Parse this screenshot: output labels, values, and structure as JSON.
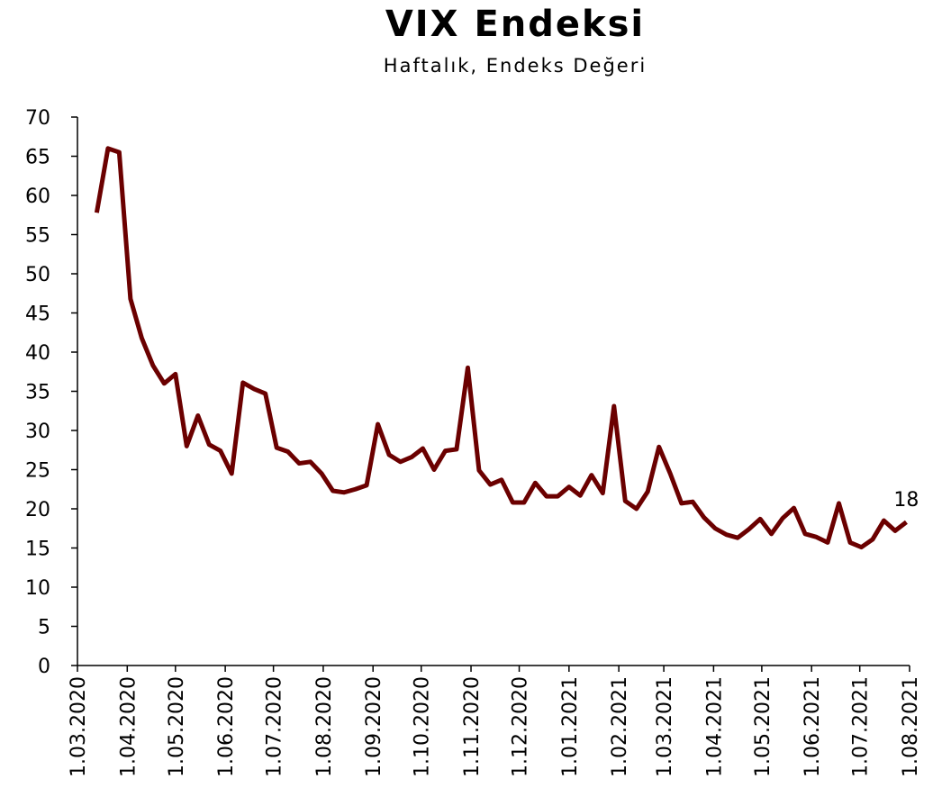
{
  "chart_data": {
    "type": "line",
    "title": "VIX Endeksi",
    "subtitle": "Haftalık, Endeks Değeri",
    "x": [
      "13.03.2020",
      "20.03.2020",
      "27.03.2020",
      "3.04.2020",
      "10.04.2020",
      "17.04.2020",
      "24.04.2020",
      "1.05.2020",
      "8.05.2020",
      "15.05.2020",
      "22.05.2020",
      "29.05.2020",
      "5.06.2020",
      "12.06.2020",
      "19.06.2020",
      "26.06.2020",
      "3.07.2020",
      "10.07.2020",
      "17.07.2020",
      "24.07.2020",
      "31.07.2020",
      "7.08.2020",
      "14.08.2020",
      "21.08.2020",
      "28.08.2020",
      "4.09.2020",
      "11.09.2020",
      "18.09.2020",
      "25.09.2020",
      "2.10.2020",
      "9.10.2020",
      "16.10.2020",
      "23.10.2020",
      "30.10.2020",
      "6.11.2020",
      "13.11.2020",
      "20.11.2020",
      "27.11.2020",
      "4.12.2020",
      "11.12.2020",
      "18.12.2020",
      "25.12.2020",
      "1.01.2021",
      "8.01.2021",
      "15.01.2021",
      "22.01.2021",
      "29.01.2021",
      "5.02.2021",
      "12.02.2021",
      "19.02.2021",
      "26.02.2021",
      "5.03.2021",
      "12.03.2021",
      "19.03.2021",
      "26.03.2021",
      "2.04.2021",
      "9.04.2021",
      "16.04.2021",
      "23.04.2021",
      "30.04.2021",
      "7.05.2021",
      "14.05.2021",
      "21.05.2021",
      "28.05.2021",
      "4.06.2021",
      "11.06.2021",
      "18.06.2021",
      "25.06.2021",
      "2.07.2021",
      "9.07.2021",
      "16.07.2021",
      "23.07.2021",
      "30.07.2021"
    ],
    "series": [
      {
        "name": "VIX",
        "color": "#6b0000",
        "values": [
          57.8,
          66,
          65.5,
          46.8,
          41.8,
          38.3,
          36,
          37.2,
          28,
          31.9,
          28.2,
          27.4,
          24.5,
          36.1,
          35.3,
          34.7,
          27.8,
          27.3,
          25.8,
          26,
          24.5,
          22.3,
          22.1,
          22.5,
          23,
          30.8,
          26.9,
          26,
          26.6,
          27.7,
          25,
          27.4,
          27.6,
          38,
          24.9,
          23.1,
          23.7,
          20.8,
          20.8,
          23.3,
          21.6,
          21.6,
          22.8,
          21.7,
          24.3,
          22,
          33.1,
          21,
          20,
          22.2,
          27.9,
          24.5,
          20.7,
          20.9,
          18.9,
          17.5,
          16.7,
          16.3,
          17.4,
          18.7,
          16.8,
          18.8,
          20.1,
          16.8,
          16.4,
          15.7,
          20.7,
          15.7,
          15.1,
          16.1,
          18.5,
          17.2,
          18.3
        ],
        "value_labels": [
          null,
          null,
          null,
          null,
          null,
          null,
          null,
          null,
          null,
          null,
          null,
          null,
          null,
          null,
          null,
          null,
          null,
          null,
          null,
          null,
          null,
          null,
          null,
          null,
          null,
          null,
          null,
          null,
          null,
          null,
          null,
          null,
          null,
          null,
          null,
          null,
          null,
          null,
          null,
          null,
          null,
          null,
          null,
          null,
          null,
          null,
          null,
          null,
          null,
          null,
          null,
          null,
          null,
          null,
          null,
          null,
          null,
          null,
          null,
          null,
          null,
          null,
          null,
          null,
          null,
          null,
          null,
          null,
          null,
          null,
          null,
          null,
          "18"
        ]
      }
    ],
    "xlim": [
      "1.03.2020",
      "1.08.2021"
    ],
    "xticks": [
      "1.03.2020",
      "1.04.2020",
      "1.05.2020",
      "1.06.2020",
      "1.07.2020",
      "1.08.2020",
      "1.09.2020",
      "1.10.2020",
      "1.11.2020",
      "1.12.2020",
      "1.01.2021",
      "1.02.2021",
      "1.03.2021",
      "1.04.2021",
      "1.05.2021",
      "1.06.2021",
      "1.07.2021",
      "1.08.2021"
    ],
    "ylim": [
      0,
      70
    ],
    "yticks": [
      0,
      5,
      10,
      15,
      20,
      25,
      30,
      35,
      40,
      45,
      50,
      55,
      60,
      65,
      70
    ],
    "grid": false
  }
}
